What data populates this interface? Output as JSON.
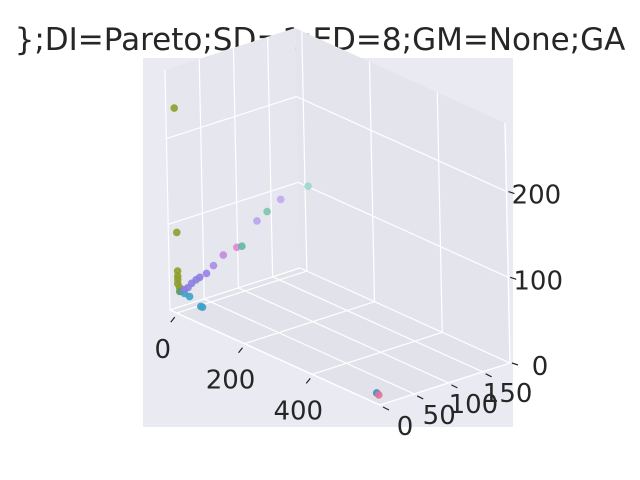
{
  "chart_data": {
    "type": "scatter",
    "projection": "3d",
    "title": "};DI=Pareto;SD=1;ED=8;GM=None;GA",
    "xlabel": "",
    "ylabel": "",
    "zlabel": "",
    "xlim": [
      -20,
      600
    ],
    "ylim": [
      0,
      190
    ],
    "zlim": [
      0,
      280
    ],
    "x_ticks": [
      0,
      200,
      400
    ],
    "y_ticks": [
      0,
      50,
      100,
      150
    ],
    "z_ticks": [
      0,
      100,
      200
    ],
    "grid": true,
    "background": "#eaeaf2",
    "points": [
      {
        "x": 5,
        "y": 0,
        "z": 240,
        "color": "#8e9d2a"
      },
      {
        "x": 5,
        "y": 0,
        "z": 95,
        "color": "#8e9d2a"
      },
      {
        "x": 5,
        "y": 0,
        "z": 50,
        "color": "#8e9d2a"
      },
      {
        "x": 5,
        "y": 0,
        "z": 44,
        "color": "#8e9d2a"
      },
      {
        "x": 5,
        "y": 0,
        "z": 40,
        "color": "#8e9d2a"
      },
      {
        "x": 5,
        "y": 0,
        "z": 35,
        "color": "#8e9d2a"
      },
      {
        "x": 8,
        "y": 1,
        "z": 31,
        "color": "#8e9d2a"
      },
      {
        "x": 10,
        "y": 0,
        "z": 27,
        "color": "#6f9c3c"
      },
      {
        "x": 14,
        "y": 0,
        "z": 28,
        "color": "#5a9a8a"
      },
      {
        "x": 20,
        "y": 2,
        "z": 26,
        "color": "#3ba3c8"
      },
      {
        "x": 35,
        "y": 2,
        "z": 25,
        "color": "#3ba3c8"
      },
      {
        "x": 70,
        "y": 1,
        "z": 20,
        "color": "#3ba3c8"
      },
      {
        "x": 75,
        "y": 1,
        "z": 20,
        "color": "#3ba3c8"
      },
      {
        "x": 18,
        "y": 3,
        "z": 30,
        "color": "#8b7fe0"
      },
      {
        "x": 25,
        "y": 5,
        "z": 33,
        "color": "#8b7fe0"
      },
      {
        "x": 30,
        "y": 8,
        "z": 38,
        "color": "#8b7fe0"
      },
      {
        "x": 35,
        "y": 12,
        "z": 42,
        "color": "#8b7fe0"
      },
      {
        "x": 40,
        "y": 15,
        "z": 45,
        "color": "#8b7fe0"
      },
      {
        "x": 50,
        "y": 20,
        "z": 50,
        "color": "#9b7fe8"
      },
      {
        "x": 55,
        "y": 28,
        "z": 58,
        "color": "#a98be8"
      },
      {
        "x": 60,
        "y": 40,
        "z": 68,
        "color": "#c08be0"
      },
      {
        "x": 70,
        "y": 55,
        "z": 75,
        "color": "#d88ad0"
      },
      {
        "x": 75,
        "y": 60,
        "z": 76,
        "color": "#5fb8a0"
      },
      {
        "x": 60,
        "y": 90,
        "z": 95,
        "color": "#b9a2ee"
      },
      {
        "x": 60,
        "y": 105,
        "z": 102,
        "color": "#7ec4b0"
      },
      {
        "x": 50,
        "y": 130,
        "z": 108,
        "color": "#c0a8f0"
      },
      {
        "x": 40,
        "y": 175,
        "z": 110,
        "color": "#a0d6cc"
      },
      {
        "x": 550,
        "y": 20,
        "z": 0,
        "color": "#3b8fc8"
      },
      {
        "x": 560,
        "y": 18,
        "z": 0,
        "color": "#e87098"
      }
    ]
  }
}
